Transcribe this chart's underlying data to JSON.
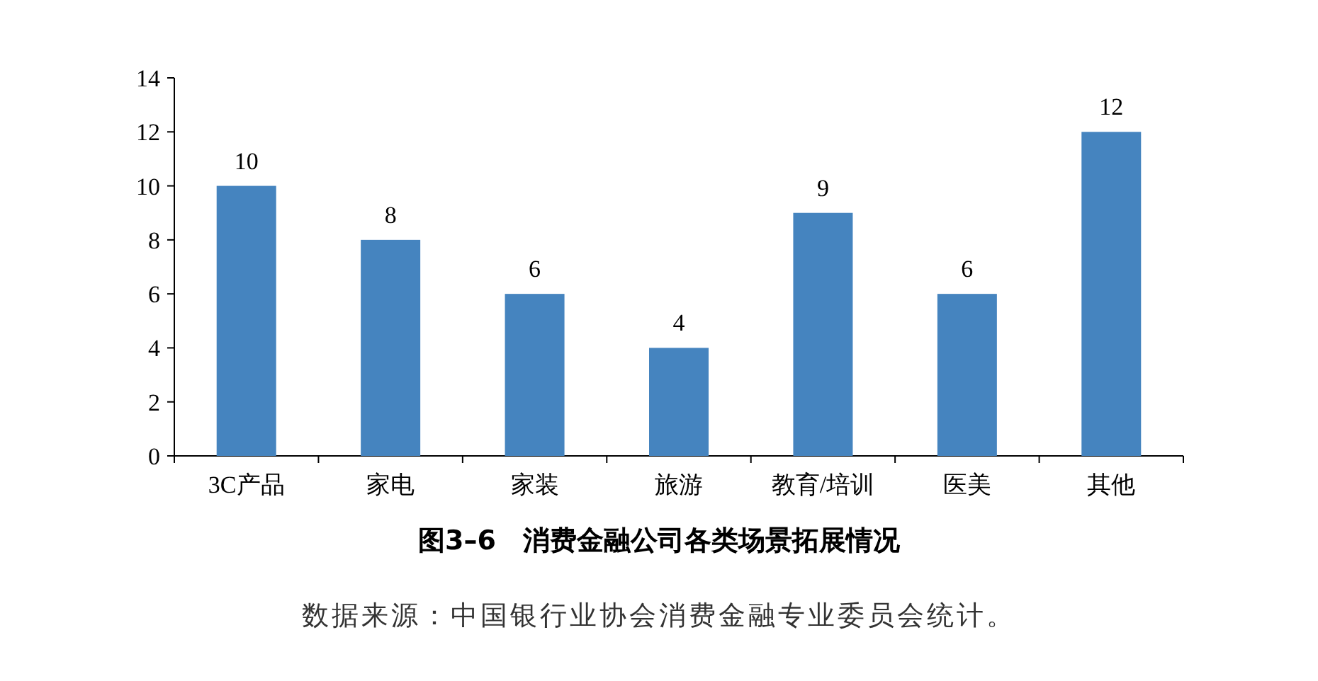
{
  "chart_data": {
    "type": "bar",
    "title": "图3–6　消费金融公司各类场景拓展情况",
    "annotations": [
      "数据来源：中国银行业协会消费金融专业委员会统计。"
    ],
    "categories": [
      "3C产品",
      "家电",
      "家装",
      "旅游",
      "教育/培训",
      "医美",
      "其他"
    ],
    "values": [
      10,
      8,
      6,
      4,
      9,
      6,
      12
    ],
    "color": "#4584bf",
    "ylim": [
      0,
      14
    ],
    "yticks": [
      0,
      2,
      4,
      6,
      8,
      10,
      12,
      14
    ],
    "data_labels": true,
    "grid": false
  }
}
